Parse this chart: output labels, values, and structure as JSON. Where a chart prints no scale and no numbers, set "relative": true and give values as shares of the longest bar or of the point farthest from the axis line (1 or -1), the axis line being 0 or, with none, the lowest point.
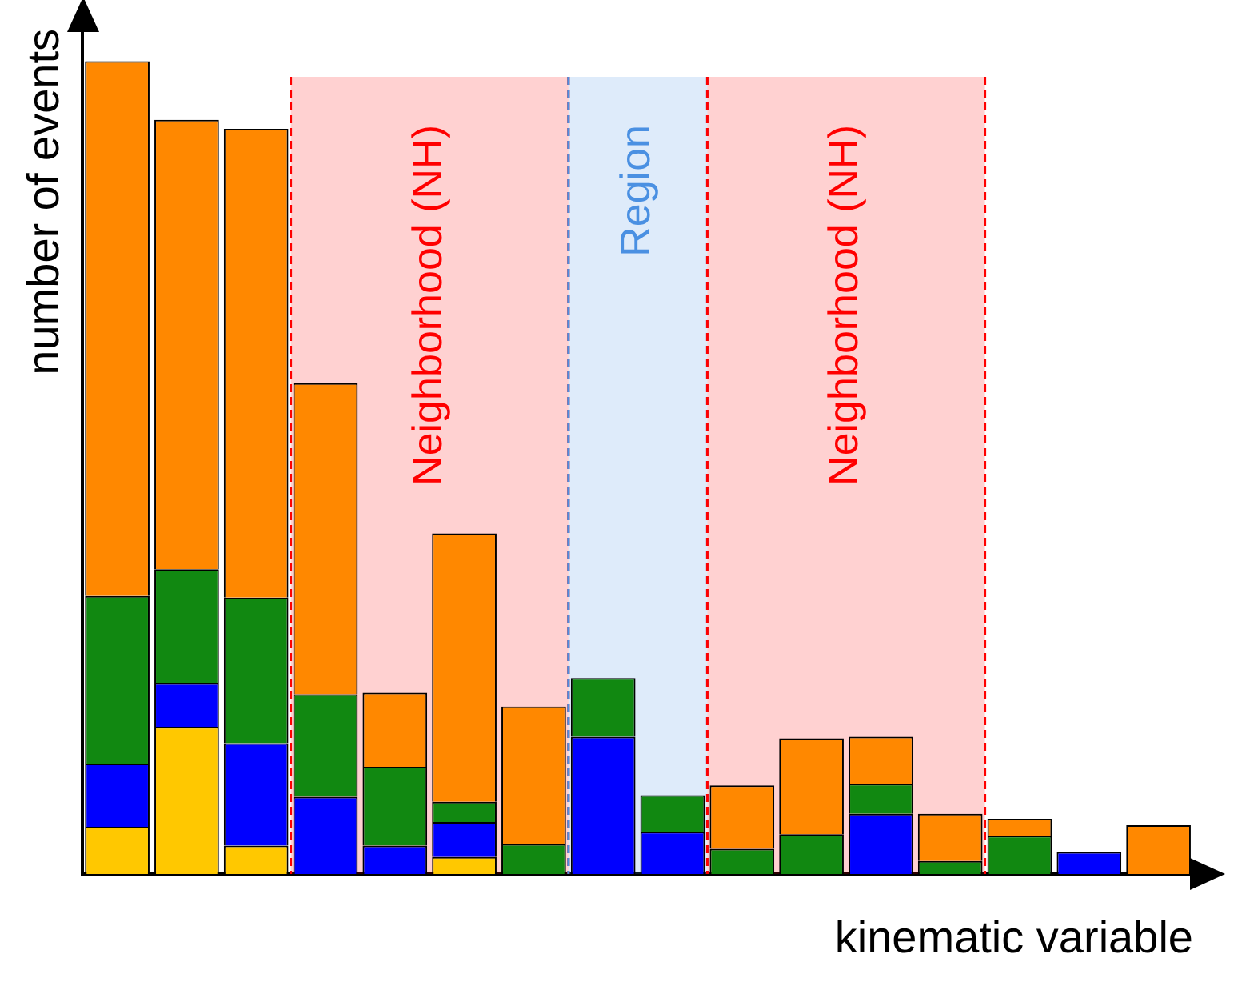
{
  "chart_data": {
    "type": "bar",
    "stacked": true,
    "relative": true,
    "xlabel": "kinematic variable",
    "ylabel": "number of events",
    "categories": [
      null,
      null,
      null,
      null,
      null,
      null,
      null,
      null,
      null,
      null,
      null,
      null,
      null,
      null,
      null,
      null
    ],
    "grid": false,
    "legend": false,
    "series": [
      {
        "color": "#ffc800",
        "values": [
          0.058,
          0.181,
          0.035,
          null,
          null,
          0.021,
          null,
          null,
          null,
          null,
          null,
          null,
          null,
          null,
          null,
          null
        ]
      },
      {
        "color": "#0000ff",
        "values": [
          0.078,
          0.054,
          0.126,
          0.095,
          0.035,
          0.043,
          null,
          0.169,
          0.052,
          null,
          null,
          0.074,
          null,
          null,
          0.027,
          null
        ]
      },
      {
        "color": "#118811",
        "values": [
          0.206,
          0.14,
          0.179,
          0.126,
          0.097,
          0.025,
          0.037,
          0.072,
          0.045,
          0.031,
          0.049,
          0.037,
          0.016,
          0.047,
          null,
          null
        ]
      },
      {
        "color": "#ff8800",
        "values": [
          0.658,
          0.553,
          0.577,
          0.383,
          0.091,
          0.33,
          0.169,
          null,
          null,
          0.078,
          0.118,
          0.058,
          0.058,
          0.021,
          null,
          0.06
        ]
      }
    ],
    "annotations": [
      "Neighborhood (NH)",
      "Region",
      "Neighborhood (NH)"
    ]
  }
}
